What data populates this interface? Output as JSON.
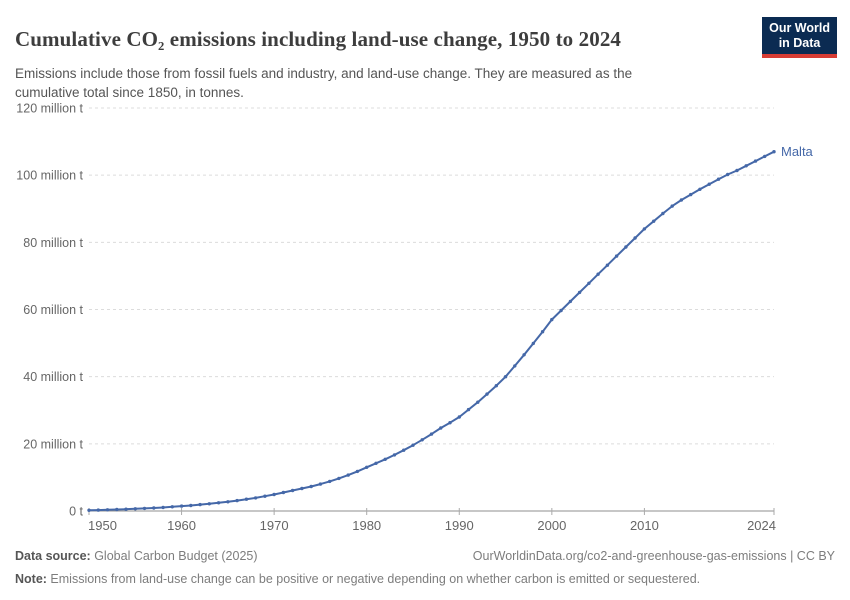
{
  "header": {
    "title": "Cumulative CO₂ emissions including land-use change, 1950 to 2024",
    "subtitle": "Emissions include those from fossil fuels and industry, and land-use change. They are measured as the cumulative total since 1850, in tonnes.",
    "logo": {
      "line1": "Our World",
      "line2": "in Data"
    }
  },
  "footer": {
    "source_label": "Data source:",
    "source_value": " Global Carbon Budget (2025)",
    "link": "OurWorldinData.org/co2-and-greenhouse-gas-emissions | CC BY",
    "note_label": "Note:",
    "note_value": " Emissions from land-use change can be positive or negative depending on whether carbon is emitted or sequestered."
  },
  "colors": {
    "line": "#4568a8",
    "grid": "#dcdcdc",
    "axis": "#8f8f8f",
    "tick_text": "#666666",
    "logo_bg": "#0b2b52",
    "logo_red": "#d73c34",
    "title_text": "#3d3d3d",
    "subtitle_text": "#555555",
    "footer_text": "#7d7d7d"
  },
  "chart_data": {
    "type": "line",
    "title": "Cumulative CO₂ emissions including land-use change, 1950 to 2024",
    "values_unit": "million tonnes",
    "xlim": [
      1950,
      2024
    ],
    "ylim": [
      0,
      120
    ],
    "grid": true,
    "x_ticks": [
      1950,
      1960,
      1970,
      1980,
      1990,
      2000,
      2010,
      2024
    ],
    "y_ticks": [
      0,
      20,
      40,
      60,
      80,
      100,
      120
    ],
    "y_tick_labels": [
      "0 t",
      "20 million t",
      "40 million t",
      "60 million t",
      "80 million t",
      "100 million t",
      "120 million t"
    ],
    "line_color": "#4568a8",
    "x": [
      1950,
      1951,
      1952,
      1953,
      1954,
      1955,
      1956,
      1957,
      1958,
      1959,
      1960,
      1961,
      1962,
      1963,
      1964,
      1965,
      1966,
      1967,
      1968,
      1969,
      1970,
      1971,
      1972,
      1973,
      1974,
      1975,
      1976,
      1977,
      1978,
      1979,
      1980,
      1981,
      1982,
      1983,
      1984,
      1985,
      1986,
      1987,
      1988,
      1989,
      1990,
      1991,
      1992,
      1993,
      1994,
      1995,
      1996,
      1997,
      1998,
      1999,
      2000,
      2001,
      2002,
      2003,
      2004,
      2005,
      2006,
      2007,
      2008,
      2009,
      2010,
      2011,
      2012,
      2013,
      2014,
      2015,
      2016,
      2017,
      2018,
      2019,
      2020,
      2021,
      2022,
      2023,
      2024
    ],
    "series": [
      {
        "name": "Malta",
        "values": [
          0.2,
          0.28,
          0.36,
          0.45,
          0.55,
          0.65,
          0.77,
          0.9,
          1.05,
          1.25,
          1.45,
          1.65,
          1.9,
          2.15,
          2.45,
          2.75,
          3.1,
          3.5,
          3.9,
          4.4,
          4.9,
          5.5,
          6.1,
          6.7,
          7.3,
          8.0,
          8.8,
          9.7,
          10.7,
          11.8,
          13.0,
          14.2,
          15.4,
          16.7,
          18.1,
          19.6,
          21.2,
          22.9,
          24.7,
          26.3,
          28.0,
          30.2,
          32.4,
          34.8,
          37.3,
          40.0,
          43.2,
          46.5,
          49.9,
          53.4,
          57.0,
          59.7,
          62.4,
          65.1,
          67.8,
          70.5,
          73.2,
          75.9,
          78.6,
          81.3,
          84.0,
          86.3,
          88.6,
          90.8,
          92.6,
          94.2,
          95.8,
          97.3,
          98.8,
          100.2,
          101.4,
          102.8,
          104.2,
          105.6,
          107.0
        ]
      }
    ]
  }
}
